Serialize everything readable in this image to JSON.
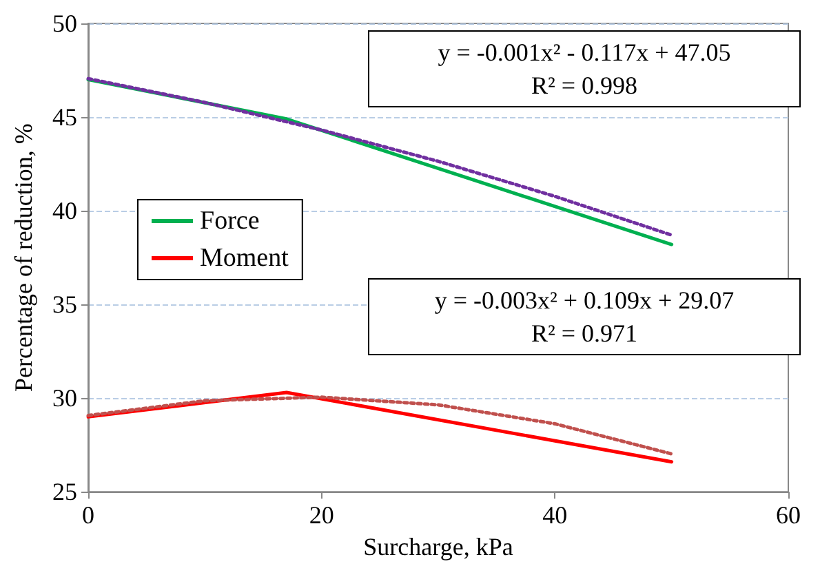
{
  "chart_data": {
    "type": "line",
    "xlabel": "Surcharge, kPa",
    "ylabel": "Percentage of reduction, %",
    "xlim": [
      0,
      60
    ],
    "xticks": [
      0,
      20,
      40,
      60
    ],
    "ylim": [
      25,
      50
    ],
    "yticks": [
      25,
      30,
      35,
      40,
      45,
      50
    ],
    "grid": "y",
    "legend": "left",
    "marker": "none",
    "line_style": "solid",
    "series": [
      {
        "name": "Force",
        "color": "#00b050",
        "x": [
          0,
          17,
          50
        ],
        "values": [
          47.0,
          44.9,
          38.2
        ]
      },
      {
        "name": "Moment",
        "color": "#ff0000",
        "x": [
          0,
          17,
          50
        ],
        "values": [
          29.0,
          30.3,
          26.6
        ]
      },
      {
        "color": "#7030a0",
        "line_style": "dotted",
        "x": [
          0,
          10,
          20,
          30,
          40,
          50
        ],
        "values": [
          47.05,
          45.78,
          44.31,
          42.64,
          40.77,
          38.7
        ]
      },
      {
        "color": "#c0504d",
        "line_style": "dotted",
        "x": [
          0,
          10,
          20,
          30,
          40,
          50
        ],
        "values": [
          29.07,
          29.86,
          30.05,
          29.64,
          28.63,
          27.02
        ]
      }
    ],
    "annotations": [
      "y = -0.001x² - 0.117x + 47.05\nR² = 0.998",
      "y = -0.003x² + 0.109x + 29.07\nR² = 0.971"
    ]
  }
}
